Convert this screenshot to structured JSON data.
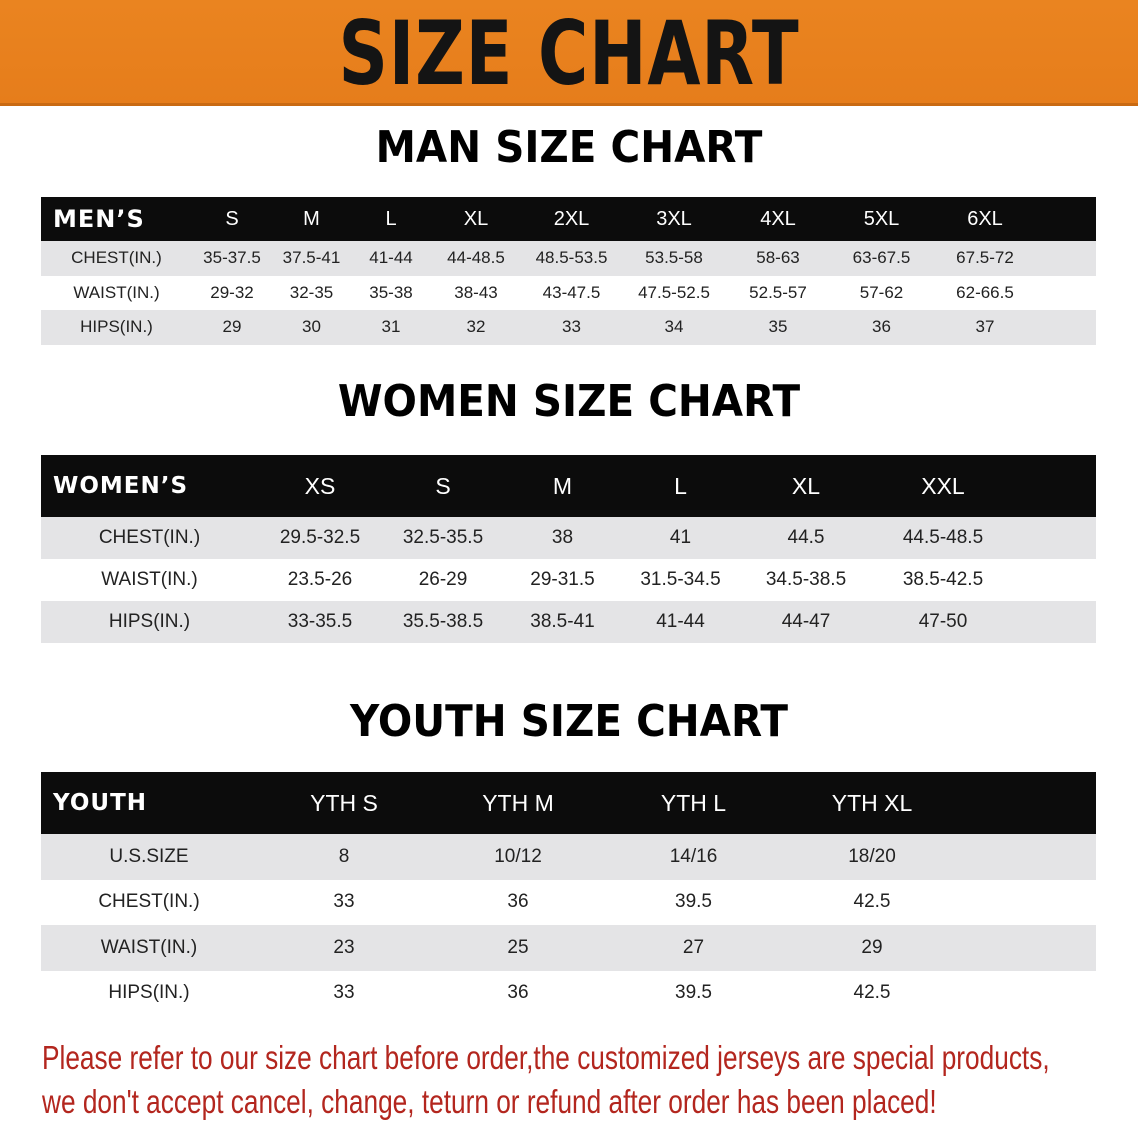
{
  "banner": {
    "title": "SIZE CHART",
    "color": "#E8811E"
  },
  "men": {
    "title": "MAN SIZE CHART",
    "header": [
      "MEN’S",
      "S",
      "M",
      "L",
      "XL",
      "2XL",
      "3XL",
      "4XL",
      "5XL",
      "6XL"
    ],
    "rows": [
      [
        "CHEST(IN.)",
        "35-37.5",
        "37.5-41",
        "41-44",
        "44-48.5",
        "48.5-53.5",
        "53.5-58",
        "58-63",
        "63-67.5",
        "67.5-72"
      ],
      [
        "WAIST(IN.)",
        "29-32",
        "32-35",
        "35-38",
        "38-43",
        "43-47.5",
        "47.5-52.5",
        "52.5-57",
        "57-62",
        "62-66.5"
      ],
      [
        "HIPS(IN.)",
        "29",
        "30",
        "31",
        "32",
        "33",
        "34",
        "35",
        "36",
        "37"
      ]
    ]
  },
  "women": {
    "title": "WOMEN SIZE CHART",
    "header": [
      "WOMEN’S",
      "XS",
      "S",
      "M",
      "L",
      "XL",
      "XXL"
    ],
    "rows": [
      [
        "CHEST(IN.)",
        "29.5-32.5",
        "32.5-35.5",
        "38",
        "41",
        "44.5",
        "44.5-48.5"
      ],
      [
        "WAIST(IN.)",
        "23.5-26",
        "26-29",
        "29-31.5",
        "31.5-34.5",
        "34.5-38.5",
        "38.5-42.5"
      ],
      [
        "HIPS(IN.)",
        "33-35.5",
        "35.5-38.5",
        "38.5-41",
        "41-44",
        "44-47",
        "47-50"
      ]
    ]
  },
  "youth": {
    "title": "YOUTH SIZE CHART",
    "header": [
      "YOUTH",
      "YTH S",
      "YTH M",
      "YTH L",
      "YTH XL"
    ],
    "rows": [
      [
        "U.S.SIZE",
        "8",
        "10/12",
        "14/16",
        "18/20"
      ],
      [
        "CHEST(IN.)",
        "33",
        "36",
        "39.5",
        "42.5"
      ],
      [
        "WAIST(IN.)",
        "23",
        "25",
        "27",
        "29"
      ],
      [
        "HIPS(IN.)",
        "33",
        "36",
        "39.5",
        "42.5"
      ]
    ]
  },
  "note": {
    "line1": "Please refer to our size chart before order,the customized jerseys are special products,",
    "line2": "we don't accept cancel, change, teturn or refund after order has been placed!",
    "color": "#B3261E"
  }
}
